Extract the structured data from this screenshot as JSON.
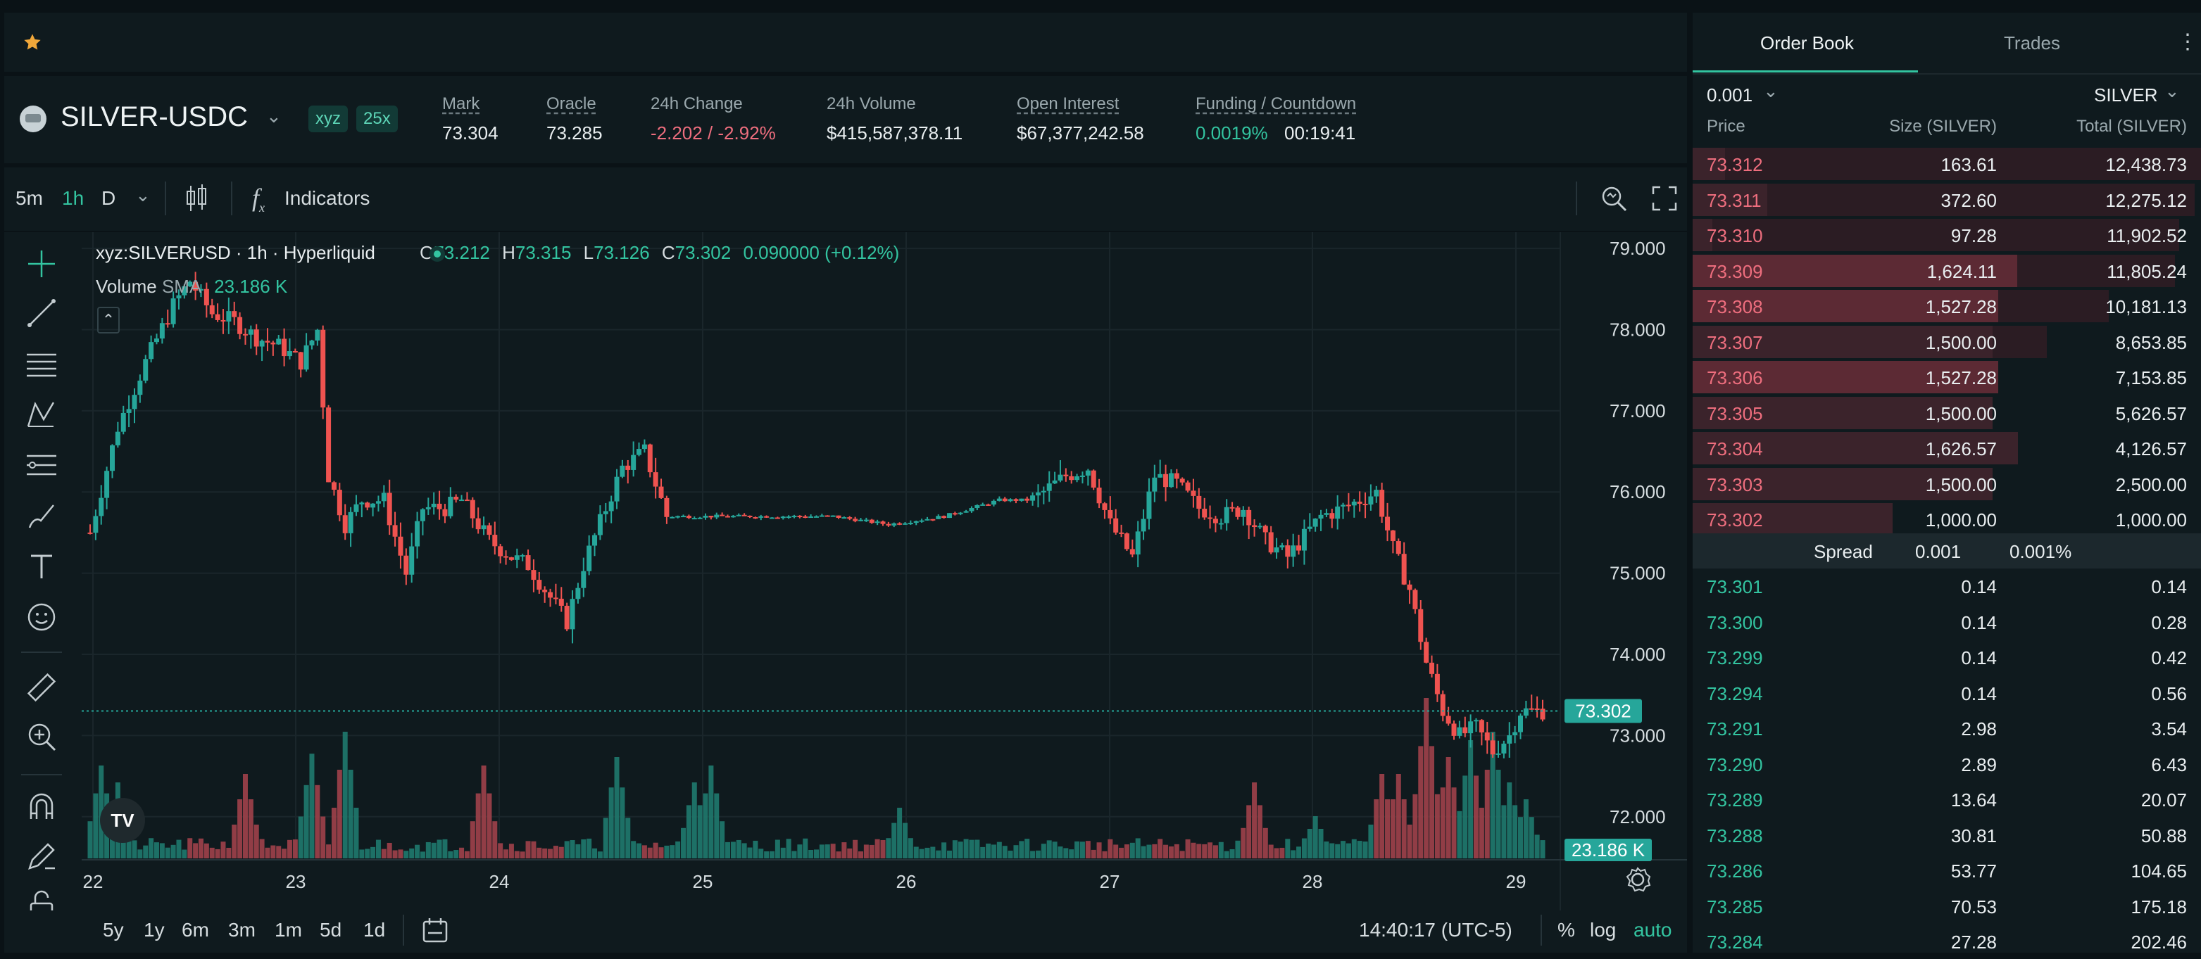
{
  "favorites": {
    "star_icon": "star-icon"
  },
  "market": {
    "pair": "SILVER-USDC",
    "tag_dex": "xyz",
    "tag_leverage": "25x",
    "mark_label": "Mark",
    "mark": "73.304",
    "oracle_label": "Oracle",
    "oracle": "73.285",
    "change_label": "24h Change",
    "change": "-2.202 / -2.92%",
    "volume_label": "24h Volume",
    "volume": "$415,587,378.11",
    "oi_label": "Open Interest",
    "oi": "$67,377,242.58",
    "funding_label": "Funding / Countdown",
    "funding": "0.0019%",
    "countdown": "00:19:41"
  },
  "toolbar": {
    "intervals": [
      "5m",
      "1h",
      "D"
    ],
    "active_interval": "1h",
    "indicators_label": "Indicators",
    "indicator_glyph": "f",
    "indicator_sub": "x"
  },
  "legend": {
    "symbol": "xyz:SILVERUSD · 1h · Hyperliquid",
    "o_label": "O",
    "o": "73.212",
    "h_label": "H",
    "h": "73.315",
    "l_label": "L",
    "l": "73.126",
    "c_label": "C",
    "c": "73.302",
    "change": "0.090000 (+0.12%)",
    "volume_label": "Volume",
    "sma_label": "SMA",
    "volume_value": "23.186 K",
    "logo_text": "TV"
  },
  "chart_data": {
    "type": "candlestick",
    "y_ticks": [
      "79.000",
      "78.000",
      "77.000",
      "76.000",
      "75.000",
      "74.000",
      "73.000",
      "72.000"
    ],
    "x_ticks": [
      "22",
      "23",
      "24",
      "25",
      "26",
      "27",
      "28",
      "29"
    ],
    "ylim": [
      71.4,
      79.2
    ],
    "last_price_label": "73.302",
    "volume_label": "23.186 K",
    "anchors": [
      [
        0,
        75.5
      ],
      [
        5,
        76.8
      ],
      [
        10,
        77.6
      ],
      [
        15,
        78.3
      ],
      [
        18,
        78.6
      ],
      [
        22,
        78.2
      ],
      [
        26,
        78.1
      ],
      [
        30,
        77.9
      ],
      [
        34,
        77.8
      ],
      [
        38,
        77.6
      ],
      [
        41,
        78.0
      ],
      [
        43,
        76.2
      ],
      [
        46,
        75.6
      ],
      [
        49,
        75.9
      ],
      [
        53,
        75.9
      ],
      [
        57,
        75.0
      ],
      [
        60,
        75.8
      ],
      [
        64,
        75.8
      ],
      [
        67,
        75.9
      ],
      [
        72,
        75.4
      ],
      [
        76,
        75.2
      ],
      [
        79,
        75.1
      ],
      [
        83,
        74.7
      ],
      [
        86,
        74.4
      ],
      [
        89,
        75.1
      ],
      [
        93,
        75.8
      ],
      [
        96,
        76.3
      ],
      [
        100,
        76.5
      ],
      [
        104,
        75.7
      ],
      [
        114,
        75.7
      ],
      [
        124,
        75.7
      ],
      [
        134,
        75.7
      ],
      [
        144,
        75.6
      ],
      [
        154,
        75.7
      ],
      [
        164,
        75.9
      ],
      [
        170,
        75.9
      ],
      [
        176,
        76.2
      ],
      [
        180,
        76.3
      ],
      [
        184,
        75.6
      ],
      [
        188,
        75.2
      ],
      [
        192,
        76.2
      ],
      [
        196,
        76.1
      ],
      [
        200,
        75.8
      ],
      [
        204,
        75.7
      ],
      [
        208,
        75.8
      ],
      [
        212,
        75.4
      ],
      [
        216,
        75.2
      ],
      [
        222,
        75.7
      ],
      [
        226,
        75.8
      ],
      [
        229,
        75.9
      ],
      [
        232,
        76.0
      ],
      [
        235,
        75.3
      ],
      [
        238,
        74.8
      ],
      [
        241,
        73.9
      ],
      [
        244,
        73.3
      ],
      [
        247,
        73.0
      ],
      [
        250,
        73.1
      ],
      [
        253,
        72.8
      ],
      [
        256,
        73.0
      ],
      [
        258,
        73.3
      ],
      [
        262,
        73.302
      ]
    ],
    "volume_peaks": [
      [
        2,
        0.55
      ],
      [
        5,
        0.45
      ],
      [
        28,
        0.5
      ],
      [
        40,
        0.62
      ],
      [
        46,
        0.75
      ],
      [
        71,
        0.55
      ],
      [
        95,
        0.6
      ],
      [
        109,
        0.45
      ],
      [
        112,
        0.55
      ],
      [
        146,
        0.3
      ],
      [
        210,
        0.45
      ],
      [
        221,
        0.25
      ],
      [
        233,
        0.5
      ],
      [
        236,
        0.5
      ],
      [
        241,
        0.95
      ],
      [
        245,
        0.6
      ],
      [
        249,
        0.7
      ],
      [
        253,
        0.75
      ],
      [
        256,
        0.45
      ],
      [
        259,
        0.35
      ]
    ]
  },
  "timeframes": [
    "5y",
    "1y",
    "6m",
    "3m",
    "1m",
    "5d",
    "1d"
  ],
  "footer": {
    "clock": "14:40:17 (UTC-5)",
    "percent_label": "%",
    "log_label": "log",
    "auto_label": "auto"
  },
  "orderbook": {
    "tab_book": "Order Book",
    "tab_trades": "Trades",
    "tick": "0.001",
    "unit": "SILVER",
    "col_price": "Price",
    "col_size": "Size (SILVER)",
    "col_total": "Total (SILVER)",
    "asks": [
      {
        "price": "73.312",
        "size": "163.61",
        "total": "12,438.73",
        "depth": 1.0
      },
      {
        "price": "73.311",
        "size": "372.60",
        "total": "12,275.12",
        "depth": 0.987
      },
      {
        "price": "73.310",
        "size": "97.28",
        "total": "11,902.52",
        "depth": 0.957
      },
      {
        "price": "73.309",
        "size": "1,624.11",
        "total": "11,805.24",
        "depth": 0.949
      },
      {
        "price": "73.308",
        "size": "1,527.28",
        "total": "10,181.13",
        "depth": 0.818
      },
      {
        "price": "73.307",
        "size": "1,500.00",
        "total": "8,653.85",
        "depth": 0.696
      },
      {
        "price": "73.306",
        "size": "1,527.28",
        "total": "7,153.85",
        "depth": 0.575
      },
      {
        "price": "73.305",
        "size": "1,500.00",
        "total": "5,626.57",
        "depth": 0.452
      },
      {
        "price": "73.304",
        "size": "1,626.57",
        "total": "4,126.57",
        "depth": 0.332
      },
      {
        "price": "73.303",
        "size": "1,500.00",
        "total": "2,500.00",
        "depth": 0.201
      },
      {
        "price": "73.302",
        "size": "1,000.00",
        "total": "1,000.00",
        "depth": 0.08
      }
    ],
    "spread_label": "Spread",
    "spread": "0.001",
    "spread_pct": "0.001%",
    "bids": [
      {
        "price": "73.301",
        "size": "0.14",
        "total": "0.14"
      },
      {
        "price": "73.300",
        "size": "0.14",
        "total": "0.28"
      },
      {
        "price": "73.299",
        "size": "0.14",
        "total": "0.42"
      },
      {
        "price": "73.294",
        "size": "0.14",
        "total": "0.56"
      },
      {
        "price": "73.291",
        "size": "2.98",
        "total": "3.54"
      },
      {
        "price": "73.290",
        "size": "2.89",
        "total": "6.43"
      },
      {
        "price": "73.289",
        "size": "13.64",
        "total": "20.07"
      },
      {
        "price": "73.288",
        "size": "30.81",
        "total": "50.88"
      },
      {
        "price": "73.286",
        "size": "53.77",
        "total": "104.65"
      },
      {
        "price": "73.285",
        "size": "70.53",
        "total": "175.18"
      },
      {
        "price": "73.284",
        "size": "27.28",
        "total": "202.46"
      }
    ]
  }
}
